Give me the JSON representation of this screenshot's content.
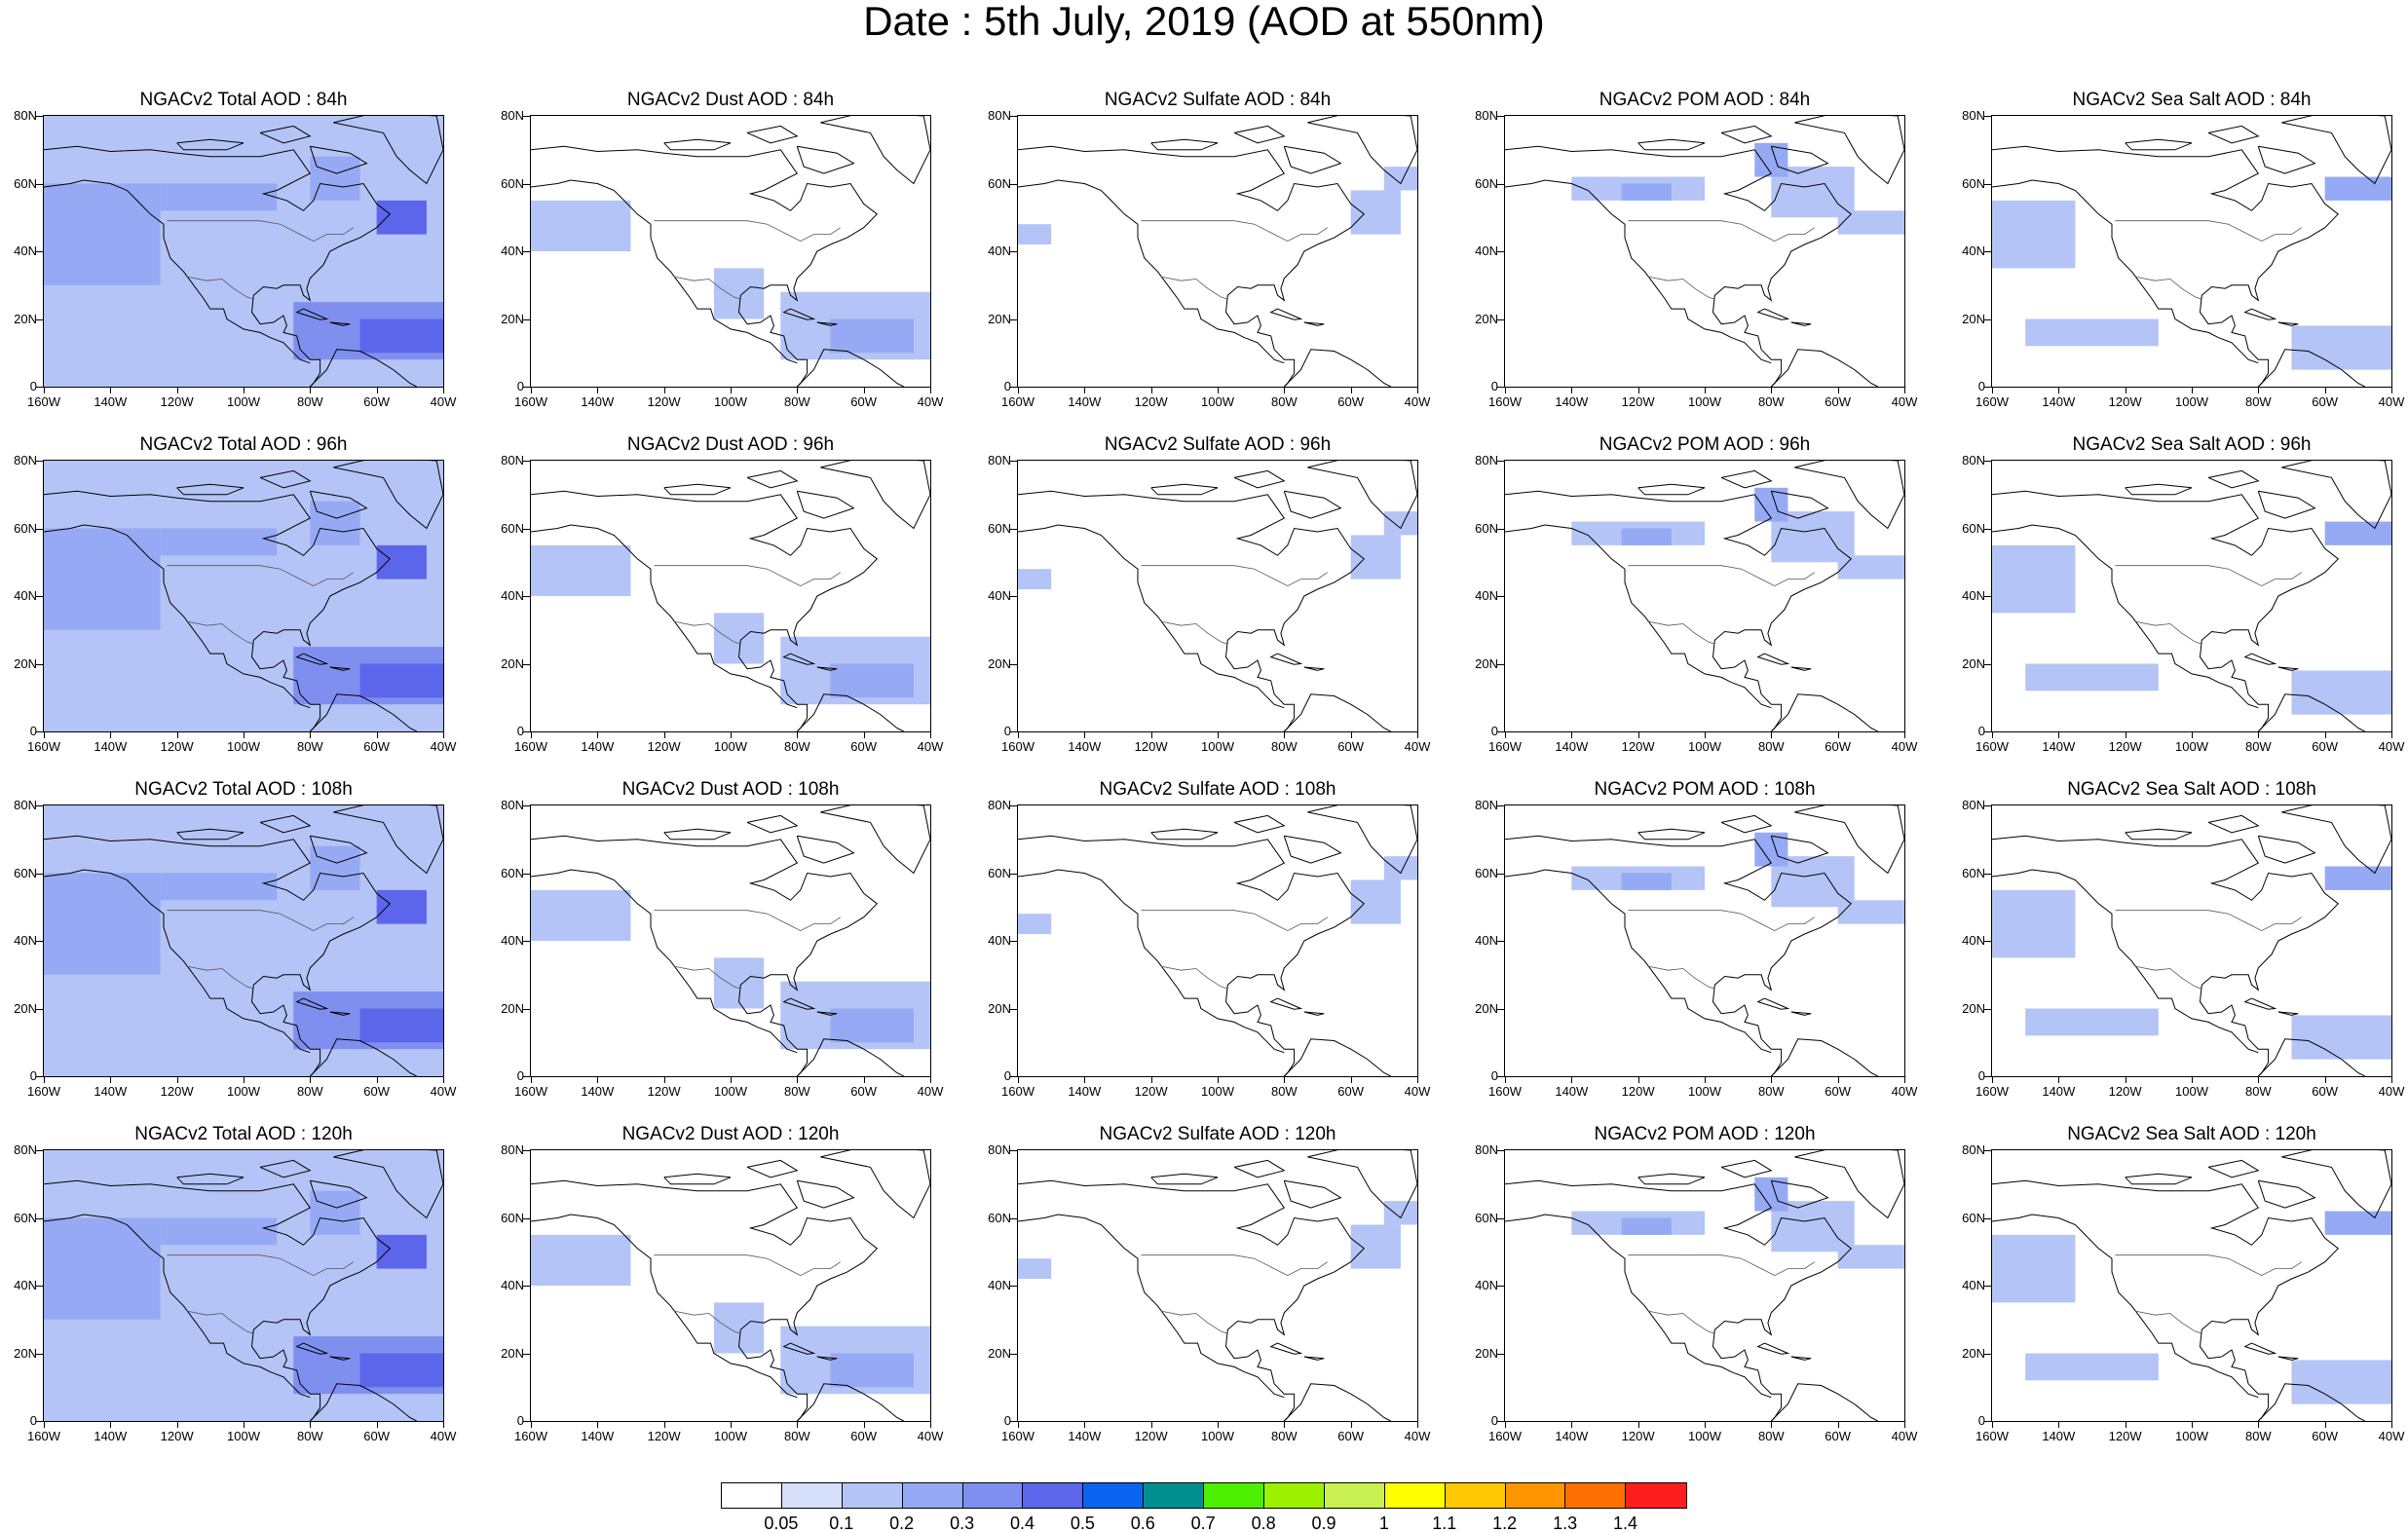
{
  "title": "Date : 5th July, 2019 (AOD at 550nm)",
  "columns": [
    "Total",
    "Dust",
    "Sulfate",
    "POM",
    "Sea Salt"
  ],
  "panels": [
    [
      "NGACv2 Total AOD : 84h",
      "NGACv2 Dust AOD : 84h",
      "NGACv2 Sulfate AOD : 84h",
      "NGACv2 POM AOD : 84h",
      "NGACv2 Sea Salt AOD : 84h"
    ],
    [
      "NGACv2 Total AOD : 96h",
      "NGACv2 Dust AOD : 96h",
      "NGACv2 Sulfate AOD : 96h",
      "NGACv2 POM AOD : 96h",
      "NGACv2 Sea Salt AOD : 96h"
    ],
    [
      "NGACv2 Total AOD : 108h",
      "NGACv2 Dust AOD : 108h",
      "NGACv2 Sulfate AOD : 108h",
      "NGACv2 POM AOD : 108h",
      "NGACv2 Sea Salt AOD : 108h"
    ],
    [
      "NGACv2 Total AOD : 120h",
      "NGACv2 Dust AOD : 120h",
      "NGACv2 Sulfate AOD : 120h",
      "NGACv2 POM AOD : 120h",
      "NGACv2 Sea Salt  AOD : 120h"
    ]
  ],
  "map_axes": {
    "lon_ticks": [
      "160W",
      "140W",
      "120W",
      "100W",
      "80W",
      "60W",
      "40W"
    ],
    "lat_ticks": [
      "80N",
      "60N",
      "40N",
      "20N",
      "0"
    ],
    "lon_range": [
      -160,
      -40
    ],
    "lat_range": [
      0,
      80
    ]
  },
  "colorbar": {
    "labels": [
      "0.05",
      "0.1",
      "0.2",
      "0.3",
      "0.4",
      "0.5",
      "0.6",
      "0.7",
      "0.8",
      "0.9",
      "1",
      "1.1",
      "1.2",
      "1.3",
      "1.4"
    ],
    "colors": [
      "#ffffff",
      "#d6e0fb",
      "#b4c4f6",
      "#96a9f4",
      "#7f8ff0",
      "#5c66ea",
      "#0a64f0",
      "#008f8f",
      "#4cf000",
      "#9cf000",
      "#c8f050",
      "#ffff00",
      "#ffc800",
      "#ff9600",
      "#ff6e00",
      "#ff1e1e"
    ]
  },
  "fields": {
    "Total": [
      {
        "lon": [
          -160,
          -40
        ],
        "lat": [
          0,
          80
        ],
        "level": 1
      },
      {
        "lon": [
          -160,
          -125
        ],
        "lat": [
          30,
          60
        ],
        "level": 2
      },
      {
        "lon": [
          -85,
          -40
        ],
        "lat": [
          8,
          25
        ],
        "level": 3
      },
      {
        "lon": [
          -65,
          -40
        ],
        "lat": [
          10,
          20
        ],
        "level": 4
      },
      {
        "lon": [
          -60,
          -45
        ],
        "lat": [
          45,
          55
        ],
        "level": 4
      },
      {
        "lon": [
          -125,
          -90
        ],
        "lat": [
          52,
          60
        ],
        "level": 2
      },
      {
        "lon": [
          -80,
          -65
        ],
        "lat": [
          55,
          68
        ],
        "level": 2
      }
    ],
    "Dust": [
      {
        "lon": [
          -85,
          -40
        ],
        "lat": [
          8,
          28
        ],
        "level": 1
      },
      {
        "lon": [
          -70,
          -45
        ],
        "lat": [
          10,
          20
        ],
        "level": 2
      },
      {
        "lon": [
          -160,
          -130
        ],
        "lat": [
          40,
          55
        ],
        "level": 1
      },
      {
        "lon": [
          -105,
          -90
        ],
        "lat": [
          20,
          35
        ],
        "level": 1
      }
    ],
    "Sulfate": [
      {
        "lon": [
          -60,
          -45
        ],
        "lat": [
          45,
          58
        ],
        "level": 1
      },
      {
        "lon": [
          -50,
          -40
        ],
        "lat": [
          58,
          65
        ],
        "level": 1
      },
      {
        "lon": [
          -160,
          -150
        ],
        "lat": [
          42,
          48
        ],
        "level": 1
      }
    ],
    "POM": [
      {
        "lon": [
          -140,
          -100
        ],
        "lat": [
          55,
          62
        ],
        "level": 1
      },
      {
        "lon": [
          -125,
          -110
        ],
        "lat": [
          55,
          60
        ],
        "level": 2
      },
      {
        "lon": [
          -80,
          -55
        ],
        "lat": [
          50,
          65
        ],
        "level": 1
      },
      {
        "lon": [
          -60,
          -40
        ],
        "lat": [
          45,
          52
        ],
        "level": 1
      },
      {
        "lon": [
          -85,
          -75
        ],
        "lat": [
          62,
          72
        ],
        "level": 2
      }
    ],
    "Sea Salt": [
      {
        "lon": [
          -160,
          -135
        ],
        "lat": [
          35,
          55
        ],
        "level": 1
      },
      {
        "lon": [
          -60,
          -40
        ],
        "lat": [
          55,
          62
        ],
        "level": 2
      },
      {
        "lon": [
          -70,
          -40
        ],
        "lat": [
          5,
          18
        ],
        "level": 1
      },
      {
        "lon": [
          -150,
          -110
        ],
        "lat": [
          12,
          20
        ],
        "level": 1
      }
    ]
  }
}
